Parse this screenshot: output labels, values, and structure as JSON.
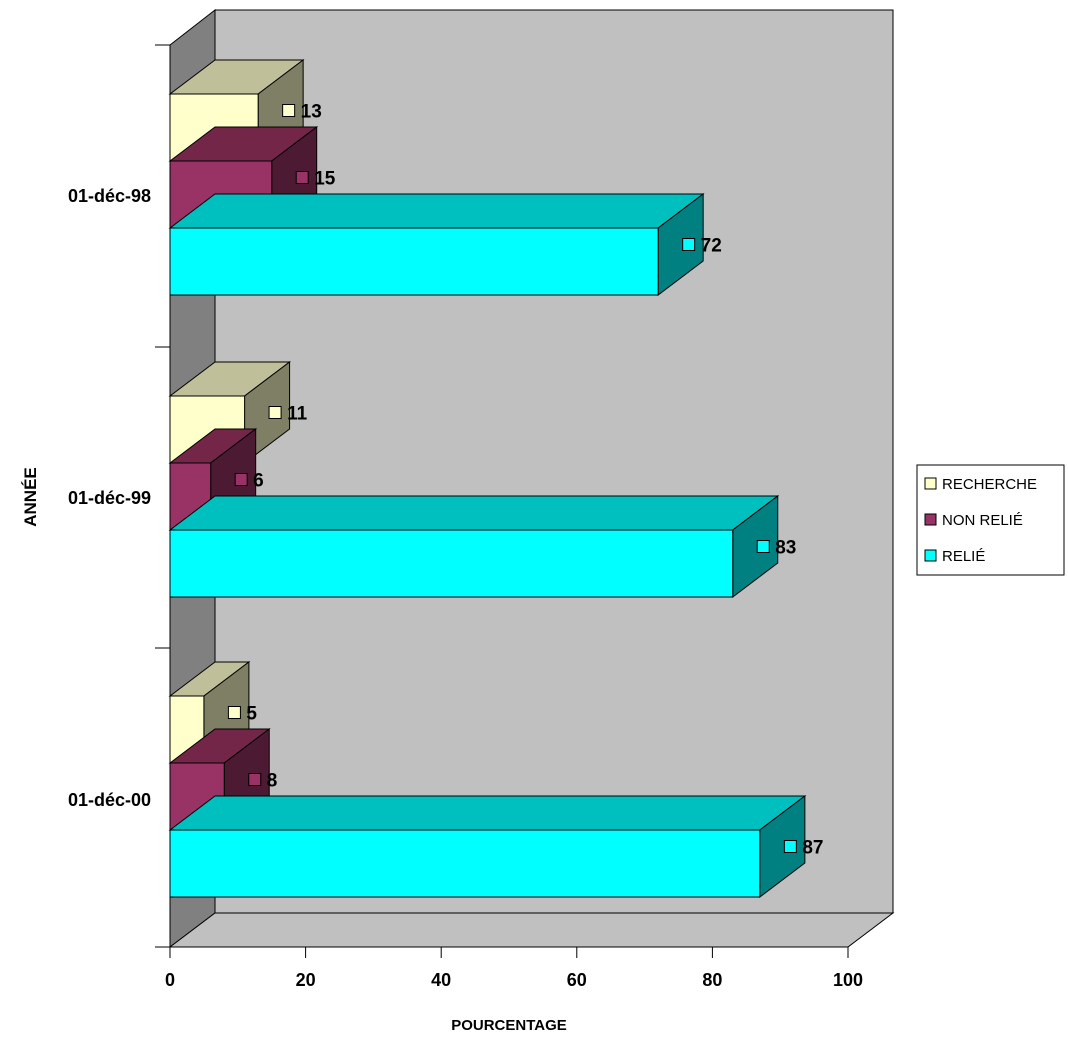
{
  "chart_data": {
    "type": "bar",
    "orientation": "horizontal",
    "three_d": true,
    "categories": [
      "01-déc-98",
      "01-déc-99",
      "01-déc-00"
    ],
    "series": [
      {
        "name": "RECHERCHE",
        "values": [
          13,
          11,
          5
        ],
        "color": "#FFFFCC",
        "side_color": "#7F7F66",
        "top_color": "#BFBF99"
      },
      {
        "name": "NON RELIÉ",
        "values": [
          15,
          6,
          8
        ],
        "color": "#993366",
        "side_color": "#4D1A33",
        "top_color": "#732647"
      },
      {
        "name": "RELIÉ",
        "values": [
          72,
          83,
          87
        ],
        "color": "#00FFFF",
        "side_color": "#008080",
        "top_color": "#00BFBF"
      }
    ],
    "data_labels": [
      [
        "13",
        "11",
        "5"
      ],
      [
        "15",
        "6",
        "8"
      ],
      [
        "72",
        "83",
        "87"
      ]
    ],
    "xlabel": "POURCENTAGE",
    "ylabel": "ANNÉE",
    "xlim": [
      0,
      100
    ],
    "xticks": [
      "0",
      "20",
      "40",
      "60",
      "80",
      "100"
    ],
    "legend_position": "right",
    "wall_color": "#C0C0C0",
    "side_wall_color": "#808080",
    "grid": false
  }
}
